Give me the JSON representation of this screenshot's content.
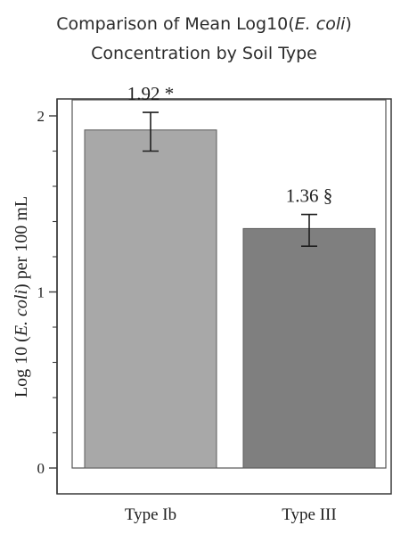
{
  "chart_data": {
    "type": "bar",
    "title_line1_prefix": "Comparison of Mean Log10(",
    "title_line1_italic": "E. coli",
    "title_line1_suffix": ")",
    "title_line2": "Concentration by Soil Type",
    "ylabel_prefix": "Log 10 (",
    "ylabel_italic": "E. coli",
    "ylabel_suffix": ") per 100 mL",
    "xlabel": "",
    "categories": [
      "Type Ib",
      "Type III"
    ],
    "values": [
      1.92,
      1.36
    ],
    "error_low": [
      1.8,
      1.26
    ],
    "error_high": [
      2.02,
      1.44
    ],
    "data_labels": [
      "1.92 *",
      "1.36 §"
    ],
    "ylim": [
      0,
      2.1
    ],
    "yticks_major": [
      0,
      1,
      2
    ],
    "yticks_minor": [
      0.2,
      0.4,
      0.6,
      0.8,
      1.2,
      1.4,
      1.6,
      1.8
    ],
    "bar_colors": [
      "#a8a8a8",
      "#7f7f7f"
    ],
    "grid": false,
    "legend": "none"
  }
}
